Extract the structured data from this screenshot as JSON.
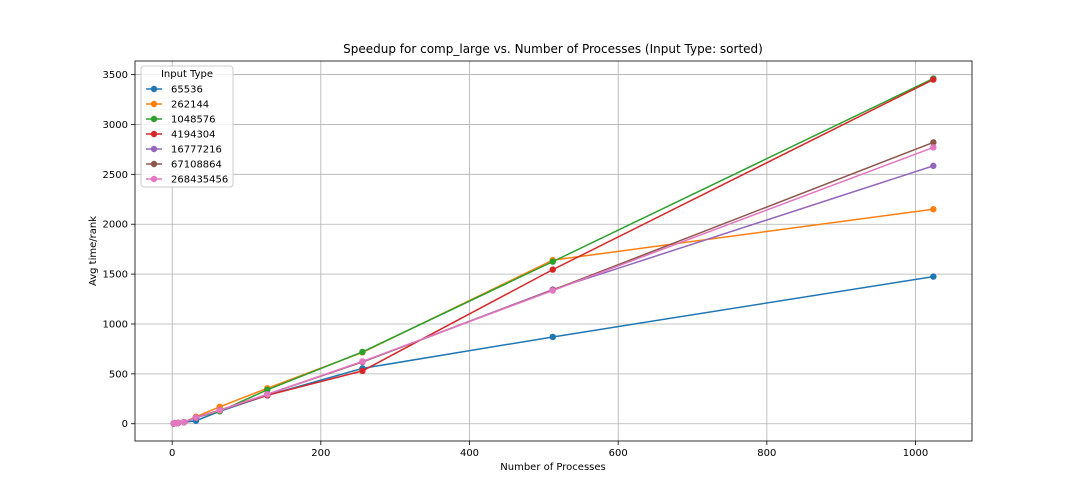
{
  "chart_data": {
    "type": "line",
    "title": "Speedup for comp_large vs. Number of Processes (Input Type: sorted)",
    "xlabel": "Number of Processes",
    "ylabel": "Avg time/rank",
    "xlim": [
      -50,
      1076
    ],
    "ylim": [
      -173,
      3636
    ],
    "xticks": [
      0,
      200,
      400,
      600,
      800,
      1000
    ],
    "yticks": [
      0,
      500,
      1000,
      1500,
      2000,
      2500,
      3000,
      3500
    ],
    "grid": true,
    "legend": {
      "title": "Input Type",
      "placement": "upper-left"
    },
    "x": [
      2,
      4,
      8,
      16,
      32,
      64,
      128,
      256,
      512,
      1024
    ],
    "series": [
      {
        "name": "65536",
        "color": "#1f77b4",
        "values": [
          1.9,
          3.8,
          7.6,
          15,
          30,
          125,
          285,
          555,
          870,
          1475
        ]
      },
      {
        "name": "262144",
        "color": "#ff7f0e",
        "values": [
          2,
          4,
          8,
          16,
          70,
          170,
          355,
          715,
          1640,
          2150
        ]
      },
      {
        "name": "1048576",
        "color": "#2ca02c",
        "values": [
          2,
          4,
          8,
          16,
          62,
          125,
          340,
          720,
          1625,
          3460
        ]
      },
      {
        "name": "4194304",
        "color": "#d62728",
        "values": [
          2,
          4,
          8,
          16,
          62,
          135,
          285,
          530,
          1545,
          3450
        ]
      },
      {
        "name": "16777216",
        "color": "#9467bd",
        "values": [
          2,
          4,
          8,
          16,
          62,
          135,
          295,
          620,
          1345,
          2585
        ]
      },
      {
        "name": "67108864",
        "color": "#8c564b",
        "values": [
          2,
          4,
          8,
          16,
          62,
          135,
          295,
          620,
          1340,
          2820
        ]
      },
      {
        "name": "268435456",
        "color": "#e377c2",
        "values": [
          2,
          4,
          8,
          16,
          62,
          135,
          295,
          625,
          1335,
          2770
        ]
      }
    ]
  }
}
